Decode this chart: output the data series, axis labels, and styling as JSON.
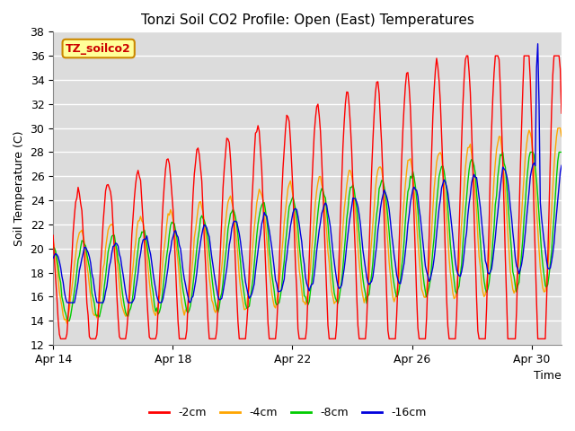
{
  "title": "Tonzi Soil CO2 Profile: Open (East) Temperatures",
  "time_label": "Time",
  "ylabel": "Soil Temperature (C)",
  "ylim": [
    12,
    38
  ],
  "yticks": [
    12,
    14,
    16,
    18,
    20,
    22,
    24,
    26,
    28,
    30,
    32,
    34,
    36,
    38
  ],
  "colors": {
    "-2cm": "#ff0000",
    "-4cm": "#ffa500",
    "-8cm": "#00cc00",
    "-16cm": "#0000dd"
  },
  "legend_label": "TZ_soilco2",
  "legend_box_facecolor": "#ffff99",
  "legend_box_edgecolor": "#cc8800",
  "plot_bg": "#dcdcdc",
  "grid_color": "#ffffff",
  "xtick_labels": [
    "Apr 14",
    "Apr 18",
    "Apr 22",
    "Apr 26",
    "Apr 30"
  ],
  "xtick_positions": [
    0,
    4,
    8,
    12,
    16
  ]
}
